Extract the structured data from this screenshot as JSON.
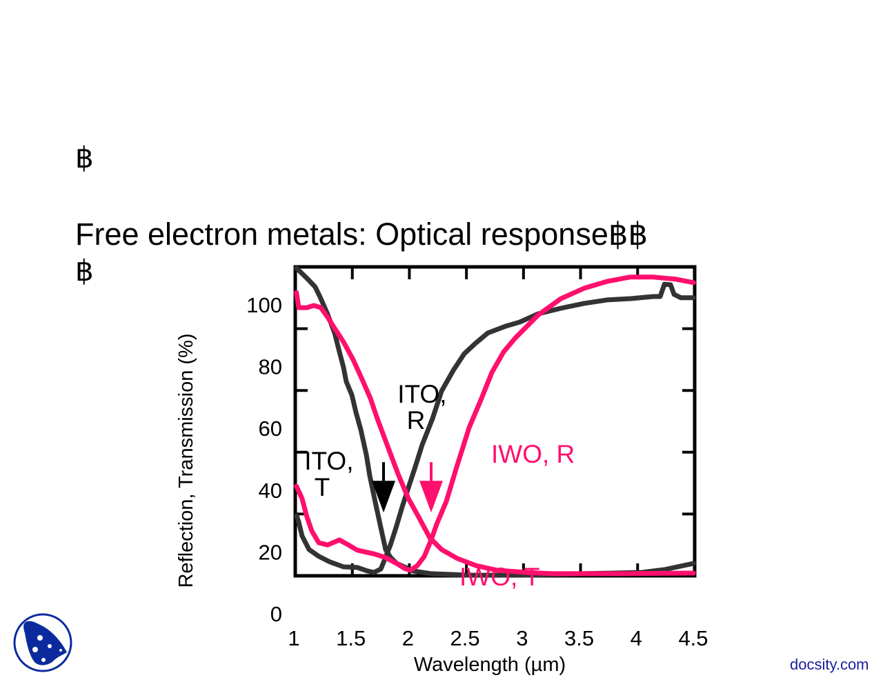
{
  "slide": {
    "bullet_1": "฿",
    "title": "Free electron metals: Optical response฿฿",
    "bullet_2": "฿"
  },
  "footer": {
    "brand_text": "docsity.com",
    "logo": "docsity-logo-icon"
  },
  "colors": {
    "ito": "#333333",
    "iwo": "#ff0f6e",
    "brand": "#1a1f9c",
    "logo": "#0b2a9e",
    "frame": "#000000"
  },
  "chart_data": {
    "type": "line",
    "title": "",
    "xlabel": "Wavelength (µm)",
    "ylabel": "Reflection, Transmission (%)",
    "xlim": [
      1,
      4.5
    ],
    "ylim": [
      0,
      100
    ],
    "xticks": [
      1,
      1.5,
      2,
      2.5,
      3,
      3.5,
      4,
      4.5
    ],
    "xtick_labels": [
      "1",
      "1.5",
      "2",
      "2.5",
      "3",
      "3.5",
      "4",
      "4.5"
    ],
    "yticks": [
      0,
      20,
      40,
      60,
      80,
      100
    ],
    "ytick_labels": [
      "0",
      "20",
      "40",
      "60",
      "80",
      "100"
    ],
    "grid": false,
    "legend": "none (curves labeled inline)",
    "series": [
      {
        "name": "ITO, T",
        "color": "#333333",
        "points": [
          [
            1.01,
            99.6
          ],
          [
            1.1,
            96.4
          ],
          [
            1.175,
            93.5
          ],
          [
            1.224,
            89.7
          ],
          [
            1.284,
            84.6
          ],
          [
            1.345,
            78.6
          ],
          [
            1.387,
            72.5
          ],
          [
            1.423,
            67.4
          ],
          [
            1.447,
            62.9
          ],
          [
            1.496,
            58.5
          ],
          [
            1.532,
            52.9
          ],
          [
            1.574,
            47.3
          ],
          [
            1.623,
            39.1
          ],
          [
            1.653,
            32.4
          ],
          [
            1.707,
            22.8
          ],
          [
            1.756,
            14.5
          ],
          [
            1.792,
            8.5
          ],
          [
            1.834,
            6.0
          ],
          [
            1.889,
            4.0
          ],
          [
            1.967,
            2.7
          ],
          [
            2.028,
            1.6
          ],
          [
            2.191,
            0.7
          ],
          [
            2.524,
            0.2
          ],
          [
            3.007,
            0.2
          ],
          [
            3.521,
            0.7
          ],
          [
            4.035,
            1.1
          ],
          [
            4.235,
            2.0
          ],
          [
            4.49,
            4.0
          ]
        ]
      },
      {
        "name": "ITO, R",
        "color": "#333333",
        "points": [
          [
            1.012,
            19.4
          ],
          [
            1.03,
            17.4
          ],
          [
            1.06,
            12.9
          ],
          [
            1.121,
            8.5
          ],
          [
            1.206,
            6.3
          ],
          [
            1.302,
            4.5
          ],
          [
            1.423,
            2.9
          ],
          [
            1.544,
            2.7
          ],
          [
            1.629,
            1.6
          ],
          [
            1.689,
            1.1
          ],
          [
            1.75,
            2.2
          ],
          [
            1.78,
            4.9
          ],
          [
            1.81,
            7.8
          ],
          [
            1.834,
            10.0
          ],
          [
            1.883,
            15.6
          ],
          [
            1.937,
            22.3
          ],
          [
            1.992,
            28.6
          ],
          [
            2.046,
            34.6
          ],
          [
            2.112,
            42.4
          ],
          [
            2.203,
            50.9
          ],
          [
            2.282,
            59.8
          ],
          [
            2.385,
            66.5
          ],
          [
            2.481,
            71.9
          ],
          [
            2.584,
            75.4
          ],
          [
            2.687,
            78.6
          ],
          [
            2.844,
            80.8
          ],
          [
            2.965,
            82.1
          ],
          [
            3.128,
            84.8
          ],
          [
            3.328,
            86.6
          ],
          [
            3.533,
            88.2
          ],
          [
            3.733,
            89.3
          ],
          [
            3.932,
            89.7
          ],
          [
            4.138,
            90.4
          ],
          [
            4.198,
            90.4
          ],
          [
            4.235,
            94.4
          ],
          [
            4.289,
            94.2
          ],
          [
            4.319,
            91.1
          ],
          [
            4.38,
            90.0
          ],
          [
            4.49,
            90.0
          ]
        ]
      },
      {
        "name": "IWO, T",
        "color": "#ff0f6e",
        "points": [
          [
            1.01,
            91.7
          ],
          [
            1.03,
            86.8
          ],
          [
            1.103,
            86.8
          ],
          [
            1.163,
            87.5
          ],
          [
            1.224,
            86.8
          ],
          [
            1.284,
            83.7
          ],
          [
            1.345,
            80.1
          ],
          [
            1.423,
            75.7
          ],
          [
            1.508,
            69.9
          ],
          [
            1.586,
            63.6
          ],
          [
            1.659,
            57.4
          ],
          [
            1.719,
            50.9
          ],
          [
            1.816,
            41.3
          ],
          [
            1.907,
            32.4
          ],
          [
            1.992,
            25.0
          ],
          [
            2.082,
            19.0
          ],
          [
            2.179,
            12.3
          ],
          [
            2.282,
            8.5
          ],
          [
            2.421,
            5.6
          ],
          [
            2.584,
            3.3
          ],
          [
            2.765,
            1.8
          ],
          [
            3.025,
            1.1
          ],
          [
            3.249,
            0.7
          ],
          [
            3.854,
            0.7
          ],
          [
            4.49,
            0.9
          ]
        ]
      },
      {
        "name": "IWO, R",
        "color": "#ff0f6e",
        "points": [
          [
            1.01,
            29.0
          ],
          [
            1.06,
            25.0
          ],
          [
            1.103,
            19.0
          ],
          [
            1.145,
            14.5
          ],
          [
            1.206,
            10.7
          ],
          [
            1.284,
            10.0
          ],
          [
            1.387,
            11.6
          ],
          [
            1.466,
            10.0
          ],
          [
            1.544,
            8.3
          ],
          [
            1.689,
            7.1
          ],
          [
            1.786,
            6.0
          ],
          [
            1.889,
            4.0
          ],
          [
            1.967,
            2.2
          ],
          [
            2.01,
            1.8
          ],
          [
            2.07,
            3.3
          ],
          [
            2.131,
            6.3
          ],
          [
            2.191,
            11.6
          ],
          [
            2.239,
            16.7
          ],
          [
            2.324,
            24.1
          ],
          [
            2.415,
            35.3
          ],
          [
            2.524,
            48.0
          ],
          [
            2.626,
            56.9
          ],
          [
            2.723,
            65.8
          ],
          [
            2.826,
            72.5
          ],
          [
            2.929,
            77.0
          ],
          [
            3.128,
            84.4
          ],
          [
            3.328,
            89.7
          ],
          [
            3.533,
            93.1
          ],
          [
            3.733,
            95.3
          ],
          [
            3.932,
            96.7
          ],
          [
            4.138,
            96.7
          ],
          [
            4.337,
            96.0
          ],
          [
            4.49,
            94.9
          ]
        ]
      }
    ],
    "annotations": [
      {
        "lines": [
          "ITO,",
          "T"
        ],
        "color": "#000000",
        "near": [
          1.33,
          37
        ]
      },
      {
        "lines": [
          "ITO,",
          "R"
        ],
        "color": "#000000",
        "near": [
          2.15,
          59
        ]
      },
      {
        "lines": [
          "IWO, R"
        ],
        "color": "#ff0f6e",
        "near": [
          2.9,
          37
        ]
      },
      {
        "lines": [
          "IWO, T"
        ],
        "color": "#ff0f6e",
        "near": [
          2.8,
          -3
        ]
      }
    ],
    "arrows": [
      {
        "label": "ITO plasma edge",
        "x": 1.774,
        "tip": 20.5,
        "color": "#000000"
      },
      {
        "label": "IWO plasma edge",
        "x": 2.191,
        "tip": 20.5,
        "color": "#ff0f6e"
      }
    ]
  }
}
